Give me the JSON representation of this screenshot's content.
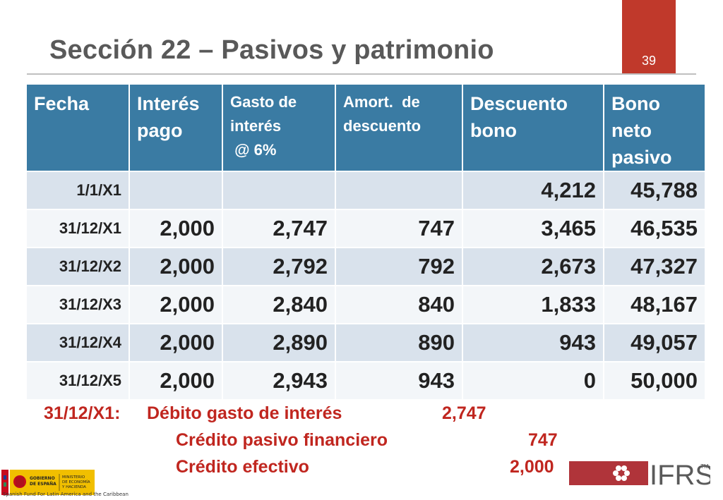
{
  "slide": {
    "title": "Sección 22 – Pasivos y patrimonio",
    "page_number": "39",
    "accent_color": "#c0392b",
    "header_color": "#3a7ba3"
  },
  "table": {
    "headers": [
      {
        "lines": [
          "Fecha"
        ]
      },
      {
        "lines": [
          "Interés",
          "pago"
        ]
      },
      {
        "lines": [
          "Gasto de",
          "interés",
          " @ 6%"
        ]
      },
      {
        "lines": [
          "Amort.  de",
          "descuento"
        ]
      },
      {
        "lines": [
          "Descuento",
          "bono"
        ]
      },
      {
        "lines": [
          "Bono",
          "neto",
          "pasivo"
        ]
      }
    ],
    "rows": [
      [
        "1/1/X1",
        "",
        "",
        "",
        "4,212",
        "45,788"
      ],
      [
        "31/12/X1",
        "2,000",
        "2,747",
        "747",
        "3,465",
        "46,535"
      ],
      [
        "31/12/X2",
        "2,000",
        "2,792",
        "792",
        "2,673",
        "47,327"
      ],
      [
        "31/12/X3",
        "2,000",
        "2,840",
        "840",
        "1,833",
        "48,167"
      ],
      [
        "31/12/X4",
        "2,000",
        "2,890",
        "890",
        "943",
        "49,057"
      ],
      [
        "31/12/X5",
        "2,000",
        "2,943",
        "943",
        "0",
        "50,000"
      ]
    ]
  },
  "journal": {
    "date": "31/12/X1:",
    "debit_label": "Débito gasto de interés",
    "debit_amount": "2,747",
    "credit1_label": "Crédito pasivo financiero",
    "credit1_amount": "747",
    "credit2_label": "Crédito efectivo",
    "credit2_amount": "2,000"
  },
  "logos": {
    "gov_line1": "GOBIERNO",
    "gov_line2": "DE ESPAÑA",
    "ministry_line1": "MINISTERIO",
    "ministry_line2": "DE ECONOMÍA",
    "ministry_line3": "Y HACIENDA",
    "fund_caption": "Spanish Fund For Latin America and the Caribbean",
    "ifrs_text": "IFRS",
    "ifrs_tm": "TM"
  }
}
